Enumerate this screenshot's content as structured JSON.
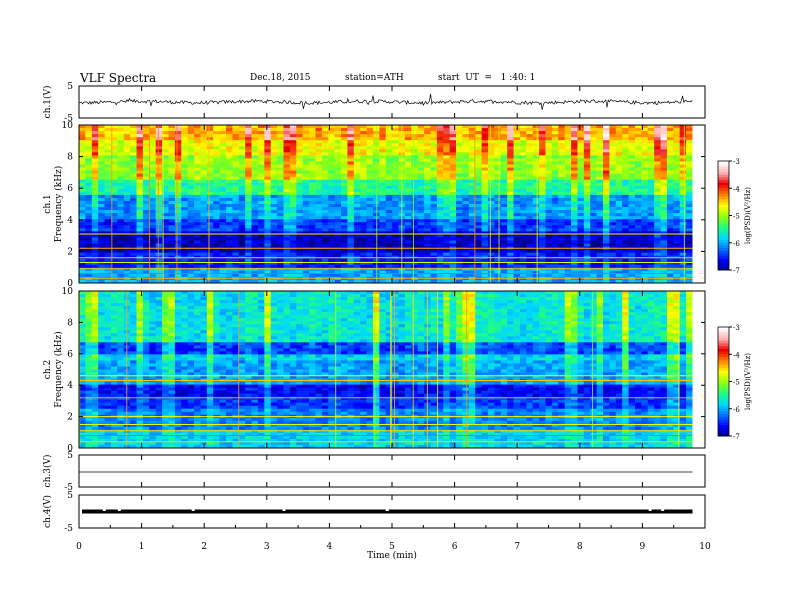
{
  "header": {
    "title": "VLF  Spectra",
    "date": "Dec.18, 2015",
    "station": "station=ATH",
    "start": "start  UT  =   1 :40: 1"
  },
  "colors": {
    "cmap": [
      "#000080",
      "#0000ff",
      "#0070ff",
      "#00d8ff",
      "#20ff80",
      "#90ff10",
      "#ffff00",
      "#ff8000",
      "#e80000",
      "#ffb0b0",
      "#ffffff"
    ]
  },
  "chart_data": [
    {
      "type": "line",
      "id": "ch1",
      "ylabel": "ch.1(V)",
      "ylim": [
        -5,
        5
      ],
      "yticks": [
        "5",
        "-5"
      ],
      "baseline": 0,
      "description_of_signal": "noisy waveform near 0 V with spikes"
    },
    {
      "type": "heatmap",
      "id": "spec1",
      "ylabel_top": "ch.1",
      "ylabel": "Frequency  (kHz)",
      "ylim": [
        0,
        10
      ],
      "yticks": [
        "0",
        "2",
        "4",
        "6",
        "8",
        "10"
      ],
      "colorbar": {
        "label": "log(PSD)(V²/Hz)",
        "range": [
          -7,
          -3
        ],
        "ticks": [
          "-3",
          "-4",
          "-5",
          "-6",
          "-7"
        ]
      },
      "bands": [
        {
          "from": 0,
          "to": 1.0,
          "level": 0.25
        },
        {
          "from": 1.0,
          "to": 2.0,
          "level": 0.12
        },
        {
          "from": 2.0,
          "to": 3.3,
          "level": 0.05
        },
        {
          "from": 3.3,
          "to": 4.0,
          "level": 0.15
        },
        {
          "from": 4.0,
          "to": 5.5,
          "level": 0.24
        },
        {
          "from": 5.5,
          "to": 6.5,
          "level": 0.38
        },
        {
          "from": 6.5,
          "to": 8.0,
          "level": 0.5
        },
        {
          "from": 8.0,
          "to": 9.0,
          "level": 0.58
        },
        {
          "from": 9.0,
          "to": 10,
          "level": 0.66
        }
      ]
    },
    {
      "type": "heatmap",
      "id": "spec2",
      "ylabel_top": "ch.2",
      "ylabel": "Frequency  (kHz)",
      "ylim": [
        0,
        10
      ],
      "yticks": [
        "0",
        "2",
        "4",
        "6",
        "8",
        "10"
      ],
      "colorbar": {
        "label": "log(PSD)(V²/Hz)",
        "range": [
          -7,
          -3
        ],
        "ticks": [
          "-3",
          "-4",
          "-5",
          "-6",
          "-7"
        ]
      },
      "bands": [
        {
          "from": 0,
          "to": 1.2,
          "level": 0.3
        },
        {
          "from": 1.2,
          "to": 2.5,
          "level": 0.22
        },
        {
          "from": 2.5,
          "to": 3.3,
          "level": 0.15
        },
        {
          "from": 3.3,
          "to": 4.0,
          "level": 0.1
        },
        {
          "from": 4.0,
          "to": 5.5,
          "level": 0.25
        },
        {
          "from": 5.5,
          "to": 6.0,
          "level": 0.3
        },
        {
          "from": 6.0,
          "to": 6.8,
          "level": 0.16
        },
        {
          "from": 6.8,
          "to": 10,
          "level": 0.33
        }
      ]
    },
    {
      "type": "line",
      "id": "ch3",
      "ylabel": "ch.3(V)",
      "ylim": [
        -5,
        5
      ],
      "yticks": [
        "5",
        "-5"
      ],
      "baseline": 0
    },
    {
      "type": "line",
      "id": "ch4",
      "ylabel": "ch.4(V)",
      "ylim": [
        -5,
        5
      ],
      "yticks": [
        "5",
        "-5"
      ],
      "baseline": 0
    }
  ],
  "xaxis": {
    "label": "Time  (min)",
    "xlim": [
      0,
      10
    ],
    "ticks": [
      "0",
      "1",
      "2",
      "3",
      "4",
      "5",
      "6",
      "7",
      "8",
      "9",
      "10"
    ],
    "data_end": 9.8
  }
}
